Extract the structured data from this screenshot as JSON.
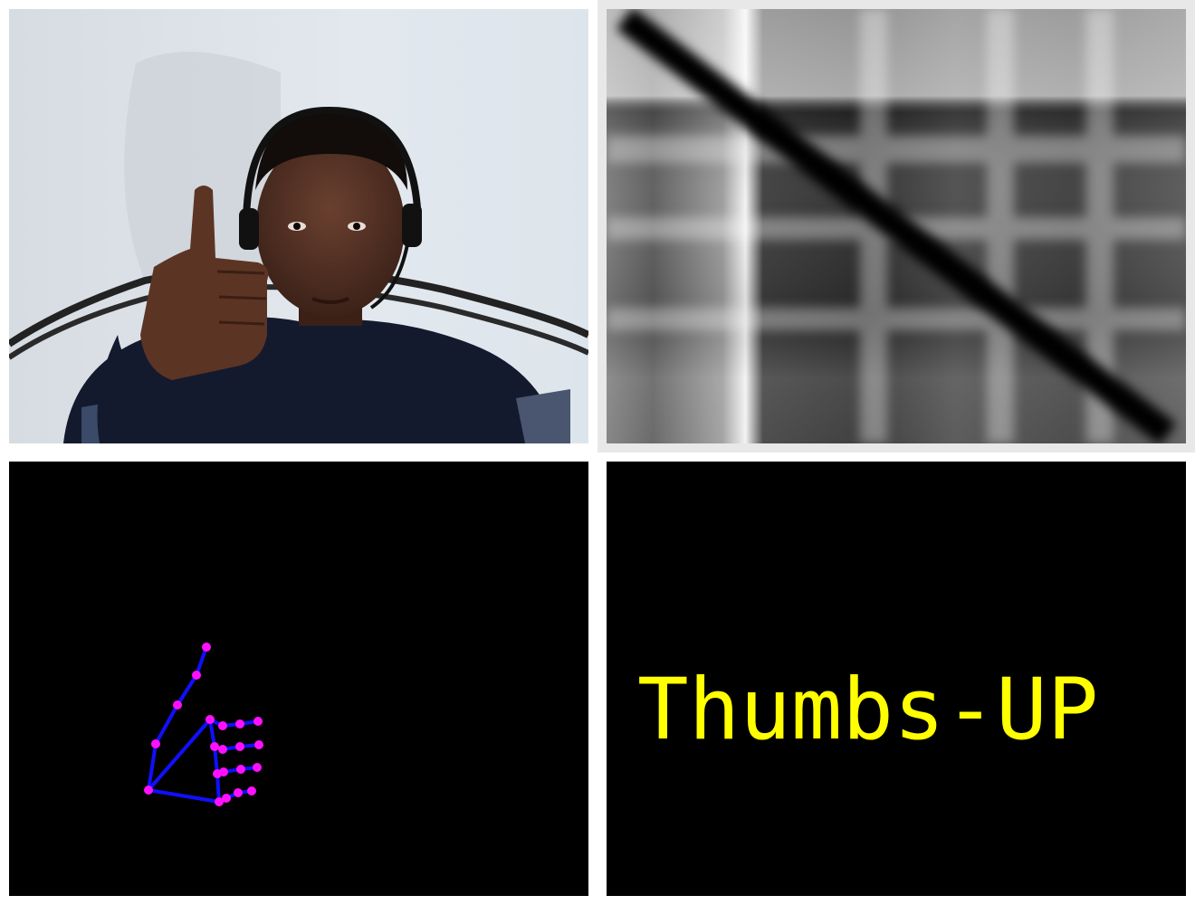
{
  "panels": {
    "camera": {
      "subject": "person-giving-thumbs-up"
    },
    "distance_matrix": {
      "colormap": "grayscale"
    },
    "skeleton": {
      "bone_color": "#1010ff",
      "joint_color": "#ff10ff"
    },
    "gesture": {
      "label": "Thumbs-UP",
      "text_color": "#ffff00"
    }
  }
}
